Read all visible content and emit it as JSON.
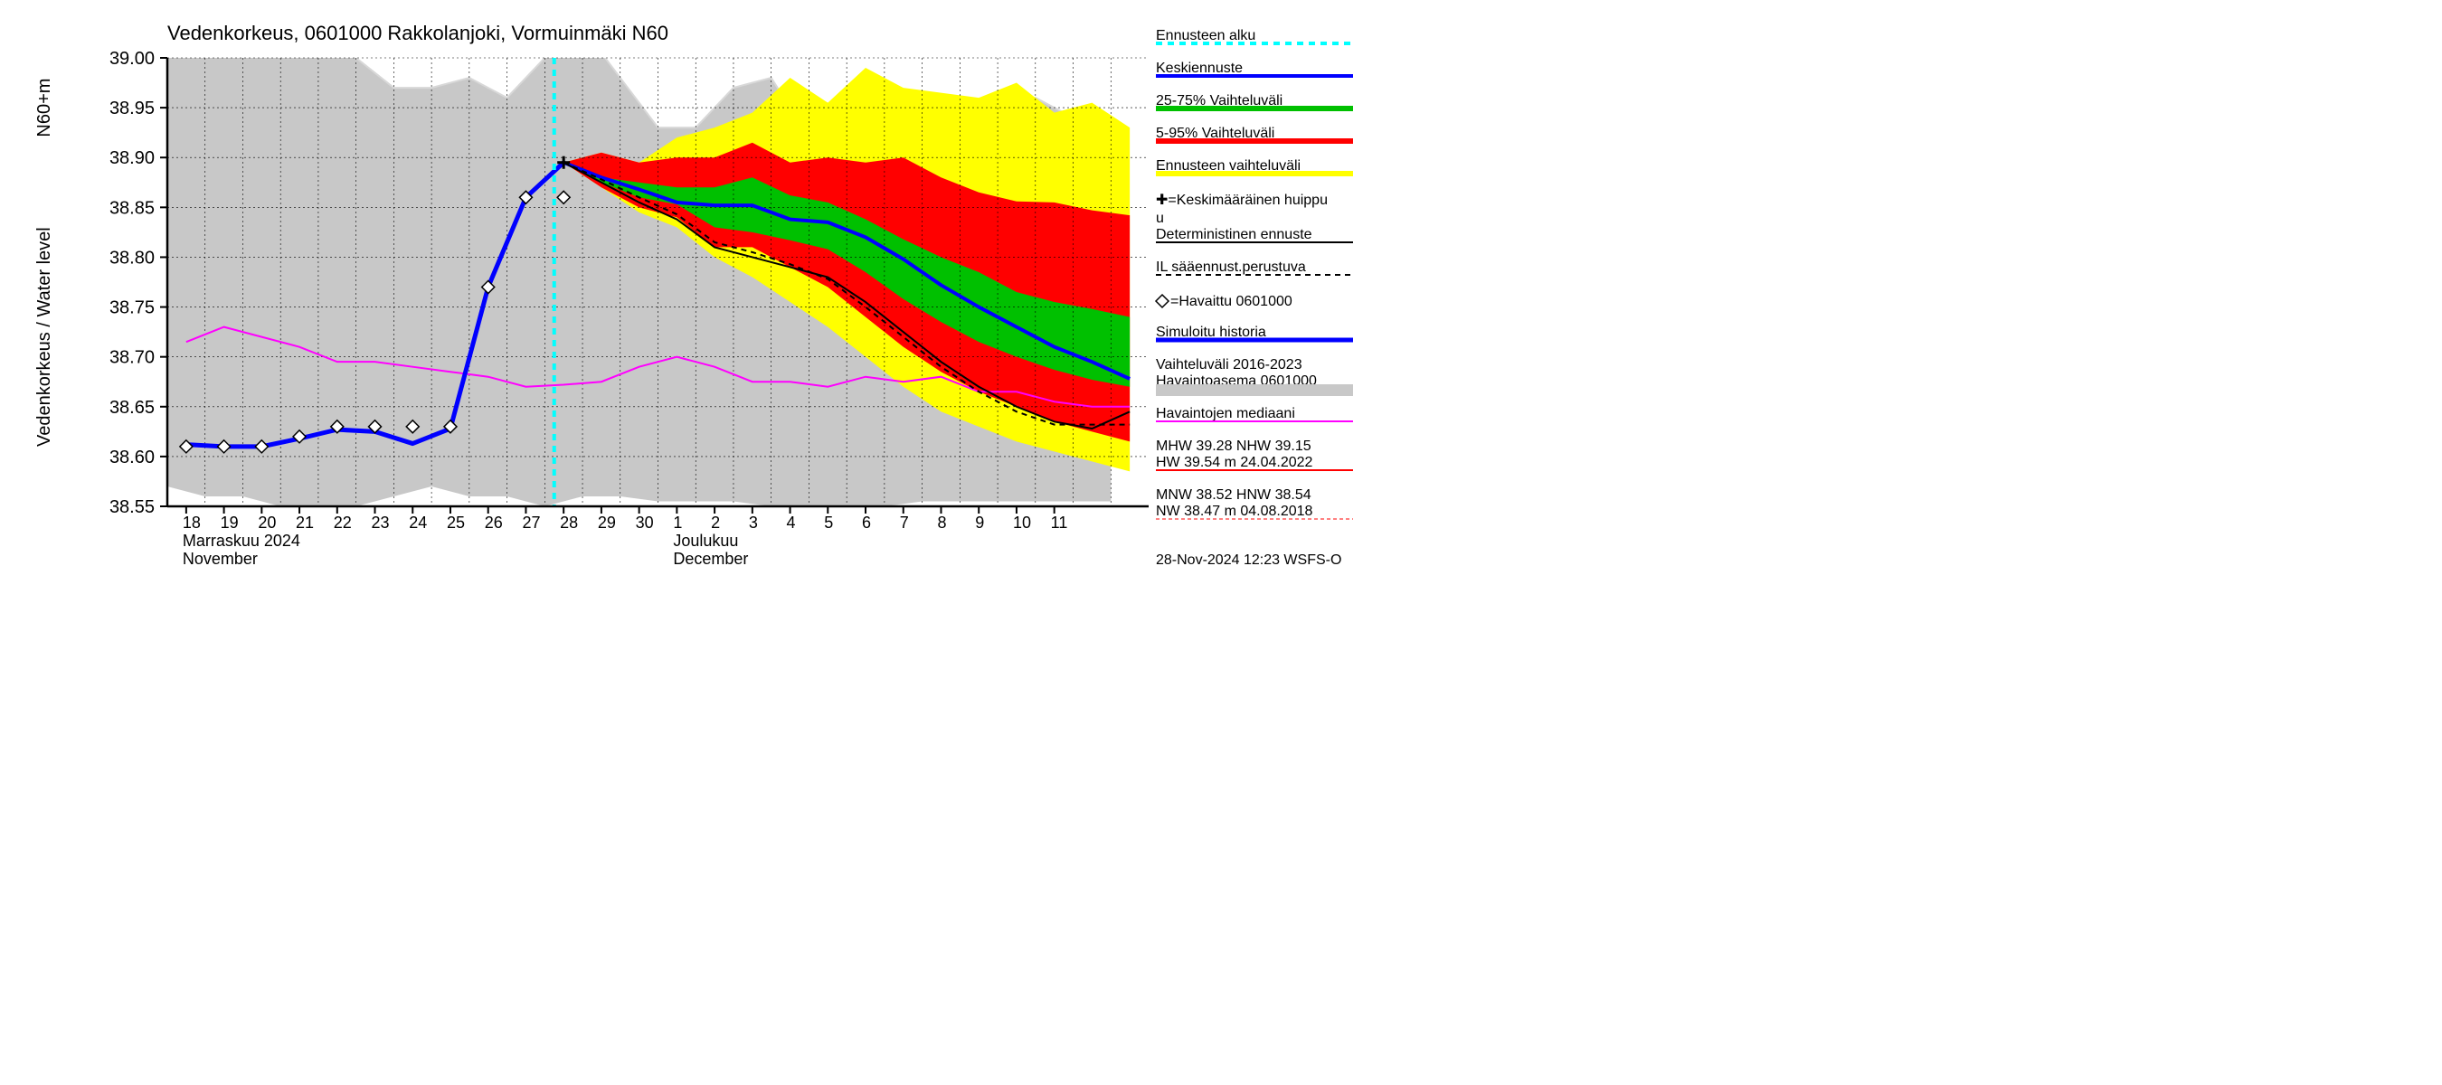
{
  "title": "Vedenkorkeus, 0601000 Rakkolanjoki, Vormuinmäki N60",
  "timestamp": "28-Nov-2024 12:23 WSFS-O",
  "y_axis": {
    "label_top": "N60+m",
    "label_bottom": "Vedenkorkeus / Water level",
    "min": 38.55,
    "max": 39.0,
    "tick_step": 0.05,
    "ticks": [
      "38.55",
      "38.60",
      "38.65",
      "38.70",
      "38.75",
      "38.80",
      "38.85",
      "38.90",
      "38.95",
      "39.00"
    ],
    "tick_fontsize": 20,
    "label_fontsize": 20
  },
  "x_axis": {
    "days": [
      18,
      19,
      20,
      21,
      22,
      23,
      24,
      25,
      26,
      27,
      28,
      29,
      30,
      1,
      2,
      3,
      4,
      5,
      6,
      7,
      8,
      9,
      10,
      11
    ],
    "month1_fi": "Marraskuu 2024",
    "month1_en": "November",
    "month2_fi": "Joulukuu",
    "month2_en": "December",
    "month_boundary_day_index": 13,
    "tick_fontsize": 18,
    "label_fontsize": 18
  },
  "plot": {
    "bg_color": "#ffffff",
    "grid_color": "#000000",
    "grid_dash": "2,3",
    "grid_width": 0.6
  },
  "forecast_start_index": 10,
  "colors": {
    "historical_band": "#c8c8c8",
    "yellow_band": "#ffff00",
    "red_band": "#ff0000",
    "green_band": "#00c000",
    "median_forecast": "#0000ff",
    "sim_history": "#0000ff",
    "deterministic": "#000000",
    "deterministic_dash": "#000000",
    "median_obs": "#ff00ff",
    "forecast_start_line": "#00ffff",
    "hist_upper_line": "#d8d8d8",
    "marker_fill": "#ffffff",
    "marker_stroke": "#000000"
  },
  "bands": {
    "historical": {
      "upper": [
        39.0,
        39.04,
        39.06,
        39.05,
        39.02,
        39.0,
        38.97,
        38.97,
        38.98,
        38.96,
        39.0,
        39.03,
        38.98,
        38.93,
        38.93,
        38.97,
        38.98,
        38.92,
        38.94,
        38.96,
        38.96,
        38.92,
        38.93,
        38.96,
        38.94,
        38.94
      ],
      "lower": [
        38.57,
        38.56,
        38.56,
        38.55,
        38.55,
        38.55,
        38.56,
        38.57,
        38.56,
        38.56,
        38.55,
        38.56,
        38.56,
        38.555,
        38.555,
        38.555,
        38.55,
        38.55,
        38.55,
        38.55,
        38.555,
        38.555,
        38.555,
        38.555,
        38.555,
        38.555
      ]
    },
    "yellow": {
      "upper": [
        38.895,
        38.905,
        38.895,
        38.92,
        38.93,
        38.945,
        38.98,
        38.955,
        38.99,
        38.97,
        38.965,
        38.96,
        38.975,
        38.945,
        38.955,
        38.93
      ],
      "lower": [
        38.895,
        38.87,
        38.845,
        38.83,
        38.8,
        38.78,
        38.755,
        38.73,
        38.7,
        38.67,
        38.645,
        38.63,
        38.615,
        38.605,
        38.595,
        38.585
      ]
    },
    "red": {
      "upper": [
        38.895,
        38.905,
        38.895,
        38.9,
        38.9,
        38.915,
        38.895,
        38.9,
        38.895,
        38.9,
        38.88,
        38.865,
        38.856,
        38.855,
        38.847,
        38.842
      ],
      "lower": [
        38.895,
        38.87,
        38.85,
        38.84,
        38.81,
        38.81,
        38.79,
        38.77,
        38.74,
        38.71,
        38.685,
        38.665,
        38.65,
        38.635,
        38.625,
        38.615
      ]
    },
    "green": {
      "upper": [
        38.895,
        38.88,
        38.875,
        38.87,
        38.87,
        38.88,
        38.862,
        38.855,
        38.838,
        38.818,
        38.8,
        38.785,
        38.765,
        38.755,
        38.748,
        38.74
      ],
      "lower": [
        38.895,
        38.875,
        38.86,
        38.853,
        38.83,
        38.825,
        38.817,
        38.808,
        38.785,
        38.758,
        38.735,
        38.715,
        38.7,
        38.687,
        38.677,
        38.67
      ]
    }
  },
  "series": {
    "sim_history": {
      "x": [
        0,
        1,
        2,
        3,
        4,
        5,
        6,
        7,
        8,
        9,
        10
      ],
      "y": [
        38.612,
        38.61,
        38.61,
        38.618,
        38.627,
        38.625,
        38.613,
        38.628,
        38.77,
        38.86,
        38.895
      ],
      "width": 5
    },
    "median_forecast": {
      "x": [
        10,
        11,
        12,
        13,
        14,
        15,
        16,
        17,
        18,
        19,
        20,
        21,
        22,
        23,
        24,
        25
      ],
      "y": [
        38.895,
        38.88,
        38.868,
        38.855,
        38.852,
        38.852,
        38.838,
        38.835,
        38.82,
        38.798,
        38.772,
        38.75,
        38.73,
        38.71,
        38.695,
        38.678
      ],
      "width": 4
    },
    "deterministic": {
      "x": [
        10,
        11,
        12,
        13,
        14,
        15,
        16,
        17,
        18,
        19,
        20,
        21,
        22,
        23,
        24,
        25
      ],
      "y": [
        38.895,
        38.875,
        38.855,
        38.838,
        38.81,
        38.8,
        38.79,
        38.78,
        38.755,
        38.725,
        38.695,
        38.67,
        38.65,
        38.635,
        38.628,
        38.645
      ],
      "width": 2
    },
    "deterministic_dash": {
      "x": [
        10,
        11,
        12,
        13,
        14,
        15,
        16,
        17,
        18,
        19,
        20,
        21,
        22,
        23,
        24,
        25
      ],
      "y": [
        38.895,
        38.878,
        38.86,
        38.843,
        38.815,
        38.805,
        38.793,
        38.778,
        38.75,
        38.72,
        38.69,
        38.665,
        38.645,
        38.632,
        38.632,
        38.632
      ],
      "width": 2,
      "dash": "6,5"
    },
    "median_obs": {
      "x": [
        0,
        1,
        2,
        3,
        4,
        5,
        6,
        7,
        8,
        9,
        10,
        11,
        12,
        13,
        14,
        15,
        16,
        17,
        18,
        19,
        20,
        21,
        22,
        23,
        24,
        25
      ],
      "y": [
        38.715,
        38.73,
        38.72,
        38.71,
        38.695,
        38.695,
        38.69,
        38.685,
        38.68,
        38.67,
        38.672,
        38.675,
        38.69,
        38.7,
        38.69,
        38.675,
        38.675,
        38.67,
        38.68,
        38.675,
        38.68,
        38.665,
        38.665,
        38.655,
        38.65,
        38.65
      ],
      "width": 2
    },
    "observations": {
      "x": [
        0,
        1,
        2,
        3,
        4,
        5,
        6,
        7,
        8,
        9,
        10
      ],
      "y": [
        38.61,
        38.61,
        38.61,
        38.62,
        38.63,
        38.63,
        38.63,
        38.63,
        38.77,
        38.86,
        38.86
      ],
      "marker_size": 7
    },
    "peak_marker": {
      "x": 10,
      "y": 38.895
    }
  },
  "legend": {
    "items": [
      {
        "key": "forecast_start",
        "label": "Ennusteen alku",
        "type": "line",
        "color": "#00ffff",
        "dash": "7,6",
        "width": 4
      },
      {
        "key": "median_forecast",
        "label": "Keskiennuste",
        "type": "line",
        "color": "#0000ff",
        "width": 4
      },
      {
        "key": "band_2575",
        "label": "25-75% Vaihteluväli",
        "type": "line",
        "color": "#00c000",
        "width": 6
      },
      {
        "key": "band_0595",
        "label": "5-95% Vaihteluväli",
        "type": "line",
        "color": "#ff0000",
        "width": 6
      },
      {
        "key": "band_full",
        "label": "Ennusteen vaihteluväli",
        "type": "line",
        "color": "#ffff00",
        "width": 6
      },
      {
        "key": "peak",
        "label_pre": "+",
        "label": "=Keskimääräinen huippu",
        "type": "marker-plus"
      },
      {
        "key": "deterministic",
        "label": "Deterministinen ennuste",
        "type": "line",
        "color": "#000000",
        "width": 2
      },
      {
        "key": "deterministic_dash",
        "label": "IL sääennust.perustuva",
        "type": "line",
        "color": "#000000",
        "width": 2,
        "dash": "6,5"
      },
      {
        "key": "obs",
        "label_pre": "◇",
        "label": "=Havaittu 0601000",
        "type": "marker-diamond"
      },
      {
        "key": "sim_history",
        "label": "Simuloitu historia",
        "type": "line",
        "color": "#0000ff",
        "width": 5
      },
      {
        "key": "hist_band",
        "label": "Vaihteluväli 2016-2023",
        "label2": " Havaintoasema 0601000",
        "type": "swatch",
        "color": "#c8c8c8"
      },
      {
        "key": "median_obs",
        "label": "Havaintojen mediaani",
        "type": "line",
        "color": "#ff00ff",
        "width": 2
      },
      {
        "key": "mhw",
        "label": "MHW  39.28 NHW  39.15",
        "label2": "HW  39.54 m 24.04.2022",
        "type": "line",
        "color": "#ff0000",
        "width": 2
      },
      {
        "key": "mnw",
        "label": "MNW  38.52 HNW  38.54",
        "label2": "NW  38.47 m 04.08.2018",
        "type": "line",
        "color": "#ff0000",
        "width": 1,
        "dash": "4,3"
      }
    ]
  }
}
